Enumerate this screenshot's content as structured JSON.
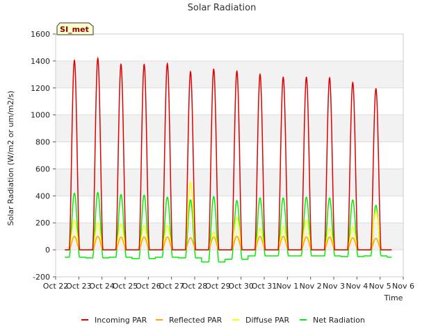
{
  "chart_data": {
    "type": "line",
    "title": "Solar Radiation",
    "xlabel": "Time",
    "ylabel": "Solar Radiation (W/m2 or um/m2/s)",
    "site_label": "SI_met",
    "ylim": [
      -200,
      1600
    ],
    "yticks": [
      -200,
      0,
      200,
      400,
      600,
      800,
      1000,
      1200,
      1400,
      1600
    ],
    "xlim": [
      0,
      15
    ],
    "xticks": [
      0,
      1,
      2,
      3,
      4,
      5,
      6,
      7,
      8,
      9,
      10,
      11,
      12,
      13,
      14,
      15
    ],
    "xtick_labels": [
      "Oct 22",
      "Oct 23",
      "Oct 24",
      "Oct 25",
      "Oct 26",
      "Oct 27",
      "Oct 28",
      "Oct 29",
      "Oct 30",
      "Oct 31",
      "Nov 1",
      "Nov 2",
      "Nov 3",
      "Nov 4",
      "Nov 5",
      "Nov 6"
    ],
    "grid": "horizontal bands",
    "legend_position": "bottom",
    "day_centers": [
      0.81,
      1.82,
      2.82,
      3.82,
      4.82,
      5.82,
      6.82,
      7.82,
      8.82,
      9.82,
      10.82,
      11.82,
      12.82,
      13.82
    ],
    "daylight_half_width": 0.22,
    "series": [
      {
        "name": "Incoming PAR",
        "color": "#dd0000",
        "night_value": 0,
        "daily_peaks": [
          1405,
          1420,
          1375,
          1375,
          1380,
          1320,
          1340,
          1325,
          1300,
          1280,
          1280,
          1275,
          1240,
          1195
        ]
      },
      {
        "name": "Reflected PAR",
        "color": "#ffa500",
        "night_value": 0,
        "daily_peaks": [
          100,
          100,
          95,
          95,
          95,
          90,
          95,
          100,
          100,
          100,
          95,
          95,
          90,
          85
        ]
      },
      {
        "name": "Diffuse PAR",
        "color": "#ffff00",
        "night_value": 0,
        "daily_peaks": [
          220,
          200,
          190,
          180,
          180,
          500,
          130,
          240,
          160,
          170,
          220,
          160,
          170,
          290
        ]
      },
      {
        "name": "Net Radiation",
        "color": "#00ee00",
        "night_values": [
          -55,
          -60,
          -55,
          -65,
          -55,
          -60,
          -90,
          -70,
          -45,
          -45,
          -45,
          -45,
          -50,
          -45,
          -55
        ],
        "daily_peaks": [
          420,
          425,
          410,
          405,
          390,
          370,
          395,
          365,
          385,
          385,
          390,
          385,
          370,
          330
        ]
      }
    ]
  }
}
